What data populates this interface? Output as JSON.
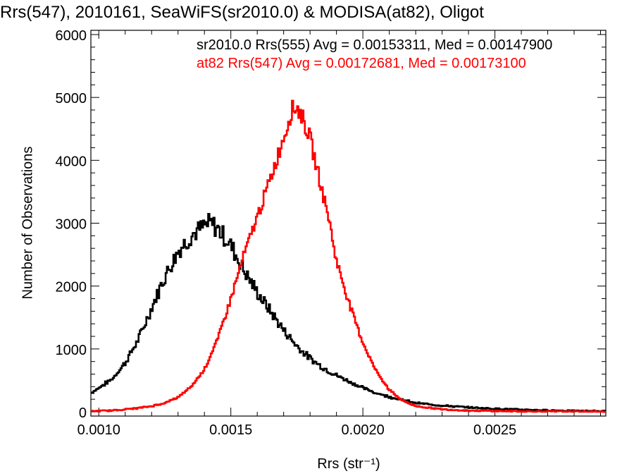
{
  "chart_data": {
    "type": "histogram",
    "title": "Rrs(547), 2010161, SeaWiFS(sr2010.0) & MODISA(at82), Oligot",
    "xlabel": "Rrs (str⁻¹)",
    "ylabel": "Number of Observations",
    "xlim": [
      0.00097,
      0.00292
    ],
    "ylim": [
      0,
      6000
    ],
    "xticks": [
      "0.0010",
      "0.0015",
      "0.0020",
      "0.0025"
    ],
    "yticks": [
      "0",
      "1000",
      "2000",
      "3000",
      "4000",
      "5000",
      "6000"
    ],
    "annotations": [
      {
        "text": "sr2010.0 Rrs(555) Avg = 0.00153311, Med = 0.00147900",
        "color": "#000000"
      },
      {
        "text": "at82 Rrs(547) Avg = 0.00172681, Med = 0.00173100",
        "color": "#ff0000"
      }
    ],
    "series": [
      {
        "color": "#000000",
        "points": [
          [
            0.00097,
            300
          ],
          [
            0.001,
            380
          ],
          [
            0.00105,
            520
          ],
          [
            0.0011,
            780
          ],
          [
            0.00115,
            1150
          ],
          [
            0.0012,
            1650
          ],
          [
            0.00125,
            2150
          ],
          [
            0.0013,
            2550
          ],
          [
            0.00135,
            2800
          ],
          [
            0.0014,
            2950
          ],
          [
            0.00142,
            3000
          ],
          [
            0.00145,
            2920
          ],
          [
            0.0015,
            2650
          ],
          [
            0.00155,
            2250
          ],
          [
            0.0016,
            1900
          ],
          [
            0.00165,
            1600
          ],
          [
            0.0017,
            1300
          ],
          [
            0.00175,
            1050
          ],
          [
            0.0018,
            850
          ],
          [
            0.00185,
            700
          ],
          [
            0.0019,
            580
          ],
          [
            0.00195,
            480
          ],
          [
            0.002,
            380
          ],
          [
            0.00205,
            300
          ],
          [
            0.0021,
            240
          ],
          [
            0.00215,
            190
          ],
          [
            0.0022,
            140
          ],
          [
            0.0023,
            100
          ],
          [
            0.0024,
            70
          ],
          [
            0.0025,
            50
          ],
          [
            0.0026,
            35
          ],
          [
            0.0027,
            25
          ],
          [
            0.0028,
            15
          ],
          [
            0.00292,
            10
          ]
        ]
      },
      {
        "color": "#ff0000",
        "points": [
          [
            0.00097,
            10
          ],
          [
            0.00105,
            20
          ],
          [
            0.0011,
            40
          ],
          [
            0.00115,
            60
          ],
          [
            0.0012,
            90
          ],
          [
            0.00125,
            140
          ],
          [
            0.0013,
            230
          ],
          [
            0.00135,
            400
          ],
          [
            0.0014,
            680
          ],
          [
            0.00145,
            1150
          ],
          [
            0.0015,
            1800
          ],
          [
            0.00155,
            2500
          ],
          [
            0.0016,
            3100
          ],
          [
            0.00165,
            3700
          ],
          [
            0.00168,
            4100
          ],
          [
            0.00171,
            4500
          ],
          [
            0.00173,
            4800
          ],
          [
            0.00175,
            4850
          ],
          [
            0.00177,
            4700
          ],
          [
            0.0018,
            4350
          ],
          [
            0.00183,
            3800
          ],
          [
            0.00187,
            3100
          ],
          [
            0.0019,
            2400
          ],
          [
            0.00195,
            1700
          ],
          [
            0.002,
            1100
          ],
          [
            0.00205,
            650
          ],
          [
            0.0021,
            350
          ],
          [
            0.00215,
            180
          ],
          [
            0.0022,
            90
          ],
          [
            0.0023,
            40
          ],
          [
            0.0024,
            20
          ],
          [
            0.0026,
            8
          ],
          [
            0.00292,
            2
          ]
        ]
      }
    ]
  }
}
